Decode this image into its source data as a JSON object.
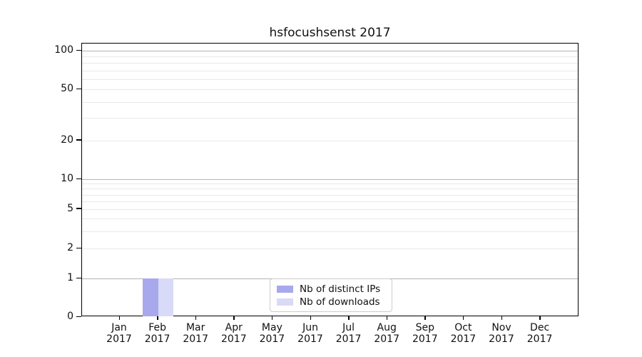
{
  "chart_data": {
    "type": "bar",
    "title": "hsfocushsenst 2017",
    "xlabel": "",
    "ylabel": "",
    "year_label": "2017",
    "categories": [
      "Jan",
      "Feb",
      "Mar",
      "Apr",
      "May",
      "Jun",
      "Jul",
      "Aug",
      "Sep",
      "Oct",
      "Nov",
      "Dec"
    ],
    "series": [
      {
        "name": "Nb of distinct IPs",
        "color": "#a8a8ec",
        "values": [
          0,
          1,
          0,
          0,
          0,
          0,
          0,
          0,
          0,
          0,
          0,
          0
        ]
      },
      {
        "name": "Nb of downloads",
        "color": "#d9d9f8",
        "values": [
          0,
          1,
          0,
          0,
          0,
          0,
          0,
          0,
          0,
          0,
          0,
          0
        ]
      }
    ],
    "y_axis": {
      "scale": "symlog",
      "tick_values": [
        0,
        1,
        2,
        5,
        10,
        20,
        50,
        100
      ],
      "minor_grid_values": [
        2,
        3,
        4,
        5,
        6,
        7,
        8,
        9,
        20,
        30,
        40,
        50,
        60,
        70,
        80,
        90
      ],
      "major_grid_values": [
        1,
        10,
        100
      ],
      "range": [
        0,
        110
      ]
    },
    "legend": {
      "position": "lower center",
      "entries": [
        "Nb of distinct IPs",
        "Nb of downloads"
      ]
    },
    "grid": "on",
    "colors": {
      "major_grid": "#b4b4b4",
      "minor_grid": "#e9e9e9",
      "axis": "#000000",
      "text": "#111111",
      "background": "#ffffff"
    }
  }
}
